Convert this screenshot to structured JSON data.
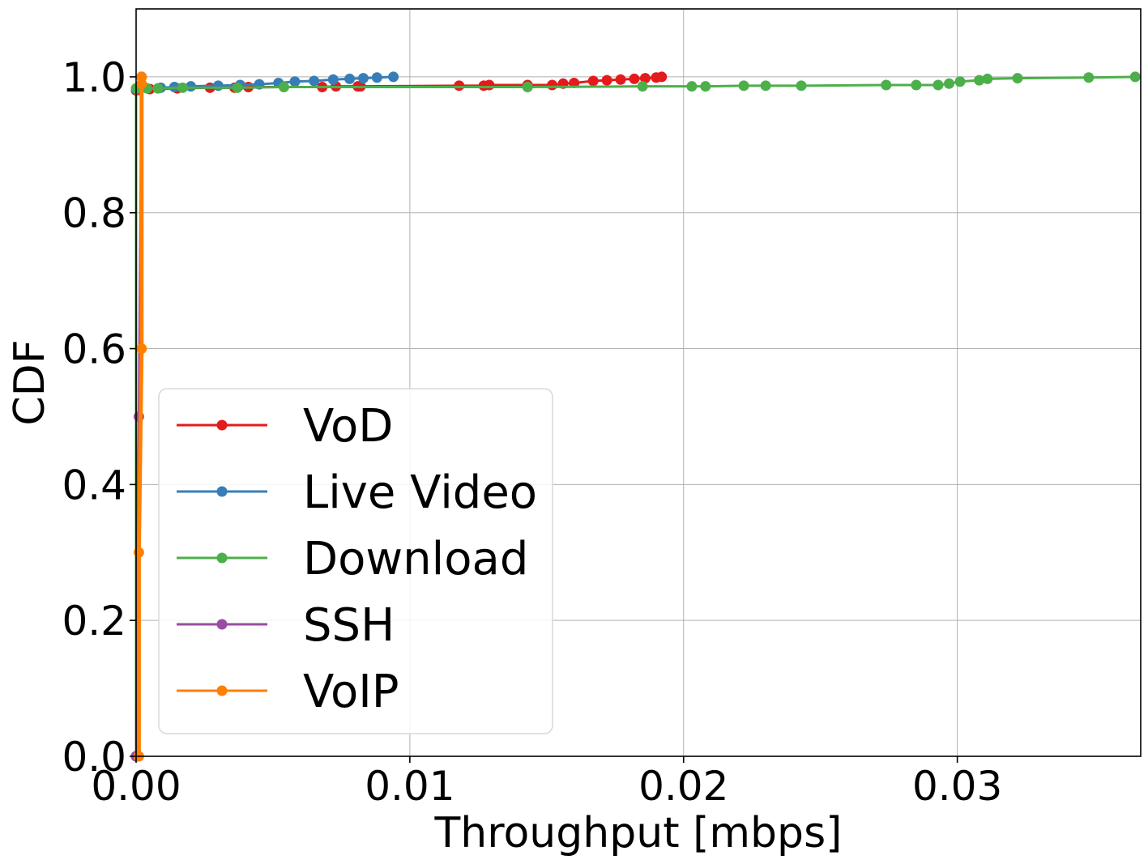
{
  "chart_data": {
    "type": "line",
    "title": "",
    "xlabel": "Throughput [mbps]",
    "ylabel": "CDF",
    "xlim": [
      0,
      0.0367
    ],
    "ylim": [
      0,
      1.1
    ],
    "xticks": [
      "0.00",
      "0.01",
      "0.02",
      "0.03"
    ],
    "xtick_values": [
      0,
      0.01,
      0.02,
      0.03
    ],
    "yticks": [
      "0.0",
      "0.2",
      "0.4",
      "0.6",
      "0.8",
      "1.0"
    ],
    "ytick_values": [
      0,
      0.2,
      0.4,
      0.6,
      0.8,
      1.0
    ],
    "grid": true,
    "legend_position": "lower-left",
    "series": [
      {
        "name": "VoD",
        "color": "#e41a1c",
        "points": [
          [
            0,
            0
          ],
          [
            0,
            0.98
          ],
          [
            0.0001,
            0.981
          ],
          [
            0.0005,
            0.982
          ],
          [
            0.0015,
            0.983
          ],
          [
            0.0027,
            0.984
          ],
          [
            0.0036,
            0.984
          ],
          [
            0.0041,
            0.985
          ],
          [
            0.0068,
            0.985
          ],
          [
            0.0073,
            0.986
          ],
          [
            0.0081,
            0.986
          ],
          [
            0.0082,
            0.986
          ],
          [
            0.0118,
            0.987
          ],
          [
            0.0127,
            0.987
          ],
          [
            0.0129,
            0.988
          ],
          [
            0.0143,
            0.988
          ],
          [
            0.0152,
            0.988
          ],
          [
            0.0156,
            0.99
          ],
          [
            0.016,
            0.991
          ],
          [
            0.0167,
            0.994
          ],
          [
            0.0172,
            0.995
          ],
          [
            0.0177,
            0.996
          ],
          [
            0.0182,
            0.997
          ],
          [
            0.0186,
            0.998
          ],
          [
            0.019,
            0.999
          ],
          [
            0.0192,
            1.0
          ]
        ]
      },
      {
        "name": "Live Video",
        "color": "#377eb8",
        "points": [
          [
            0,
            0
          ],
          [
            0,
            0.982
          ],
          [
            0.0009,
            0.984
          ],
          [
            0.0014,
            0.985
          ],
          [
            0.002,
            0.986
          ],
          [
            0.003,
            0.987
          ],
          [
            0.0038,
            0.988
          ],
          [
            0.0045,
            0.989
          ],
          [
            0.0052,
            0.991
          ],
          [
            0.0058,
            0.993
          ],
          [
            0.0065,
            0.994
          ],
          [
            0.0072,
            0.996
          ],
          [
            0.0078,
            0.997
          ],
          [
            0.0083,
            0.998
          ],
          [
            0.0088,
            0.999
          ],
          [
            0.0094,
            1.0
          ]
        ]
      },
      {
        "name": "Download",
        "color": "#4daf4a",
        "points": [
          [
            0,
            0
          ],
          [
            0,
            0.983
          ],
          [
            0.0004,
            0.983
          ],
          [
            0.0008,
            0.983
          ],
          [
            0.0017,
            0.984
          ],
          [
            0.0037,
            0.984
          ],
          [
            0.0054,
            0.985
          ],
          [
            0.0143,
            0.985
          ],
          [
            0.0185,
            0.986
          ],
          [
            0.0203,
            0.986
          ],
          [
            0.0208,
            0.986
          ],
          [
            0.0222,
            0.987
          ],
          [
            0.023,
            0.987
          ],
          [
            0.0243,
            0.987
          ],
          [
            0.0274,
            0.988
          ],
          [
            0.0285,
            0.988
          ],
          [
            0.0293,
            0.988
          ],
          [
            0.0297,
            0.99
          ],
          [
            0.0301,
            0.993
          ],
          [
            0.0308,
            0.995
          ],
          [
            0.0311,
            0.997
          ],
          [
            0.0322,
            0.998
          ],
          [
            0.0348,
            0.999
          ],
          [
            0.0365,
            1.0
          ]
        ]
      },
      {
        "name": "SSH",
        "color": "#984ea3",
        "points": [
          [
            0,
            0
          ],
          [
            0.0001,
            0.5
          ],
          [
            0.0002,
            1.0
          ]
        ]
      },
      {
        "name": "VoIP",
        "color": "#ff7f00",
        "points": [
          [
            0.0001,
            0
          ],
          [
            0.0001,
            0.3
          ],
          [
            0.0002,
            0.6
          ],
          [
            0.0002,
            0.99
          ],
          [
            0.0002,
            1.0
          ]
        ]
      }
    ]
  }
}
